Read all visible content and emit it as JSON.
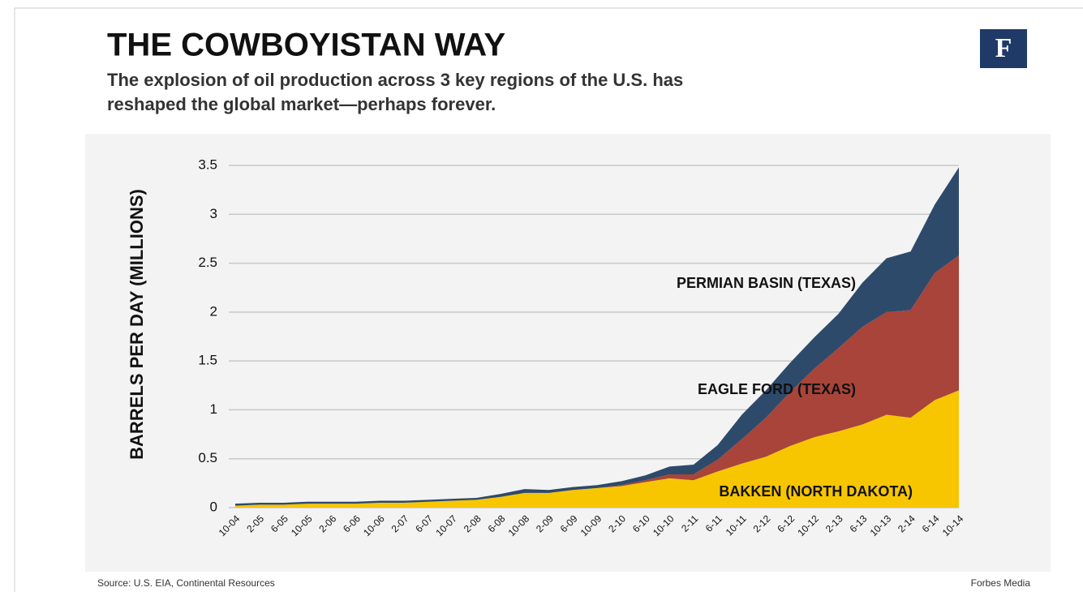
{
  "logo": "F",
  "source": "Source: U.S. EIA, Continental Resources",
  "credit": "Forbes Media",
  "chart_data": {
    "type": "area",
    "stacked": true,
    "title": "THE COWBOYISTAN WAY",
    "subtitle": [
      "The explosion of oil production across 3 key regions of the U.S. has",
      "reshaped the global market—perhaps forever."
    ],
    "y_label": "BARRELS PER DAY (MILLIONS)",
    "categories": [
      "10-04",
      "2-05",
      "6-05",
      "10-05",
      "2-06",
      "6-06",
      "10-06",
      "2-07",
      "6-07",
      "10-07",
      "2-08",
      "6-08",
      "10-08",
      "2-09",
      "6-09",
      "10-09",
      "2-10",
      "6-10",
      "10-10",
      "2-11",
      "6-11",
      "10-11",
      "2-12",
      "6-12",
      "10-12",
      "2-13",
      "6-13",
      "10-13",
      "2-14",
      "6-14",
      "10-14"
    ],
    "series": [
      {
        "name": "BAKKEN (NORTH DAKOTA)",
        "color": "#f7c600",
        "values": [
          0.02,
          0.03,
          0.03,
          0.04,
          0.04,
          0.04,
          0.05,
          0.05,
          0.06,
          0.07,
          0.08,
          0.11,
          0.15,
          0.15,
          0.18,
          0.2,
          0.22,
          0.26,
          0.3,
          0.28,
          0.37,
          0.45,
          0.52,
          0.63,
          0.72,
          0.78,
          0.85,
          0.95,
          0.92,
          1.1,
          1.2
        ]
      },
      {
        "name": "EAGLE FORD (TEXAS)",
        "color": "#a8443a",
        "values": [
          0,
          0,
          0,
          0,
          0,
          0,
          0,
          0,
          0,
          0,
          0,
          0,
          0,
          0,
          0,
          0,
          0.01,
          0.02,
          0.04,
          0.06,
          0.12,
          0.25,
          0.4,
          0.55,
          0.7,
          0.85,
          1.0,
          1.05,
          1.1,
          1.3,
          1.38
        ]
      },
      {
        "name": "PERMIAN BASIN (TEXAS)",
        "color": "#2e4a6b",
        "values": [
          0.02,
          0.02,
          0.02,
          0.02,
          0.02,
          0.02,
          0.02,
          0.02,
          0.02,
          0.02,
          0.02,
          0.03,
          0.04,
          0.03,
          0.03,
          0.03,
          0.04,
          0.05,
          0.08,
          0.1,
          0.15,
          0.25,
          0.28,
          0.3,
          0.32,
          0.35,
          0.45,
          0.55,
          0.6,
          0.7,
          0.9
        ]
      }
    ],
    "ylim": [
      0,
      3.5
    ],
    "yticks": [
      0,
      0.5,
      1,
      1.5,
      2,
      2.5,
      3,
      3.5
    ],
    "grid": true
  }
}
